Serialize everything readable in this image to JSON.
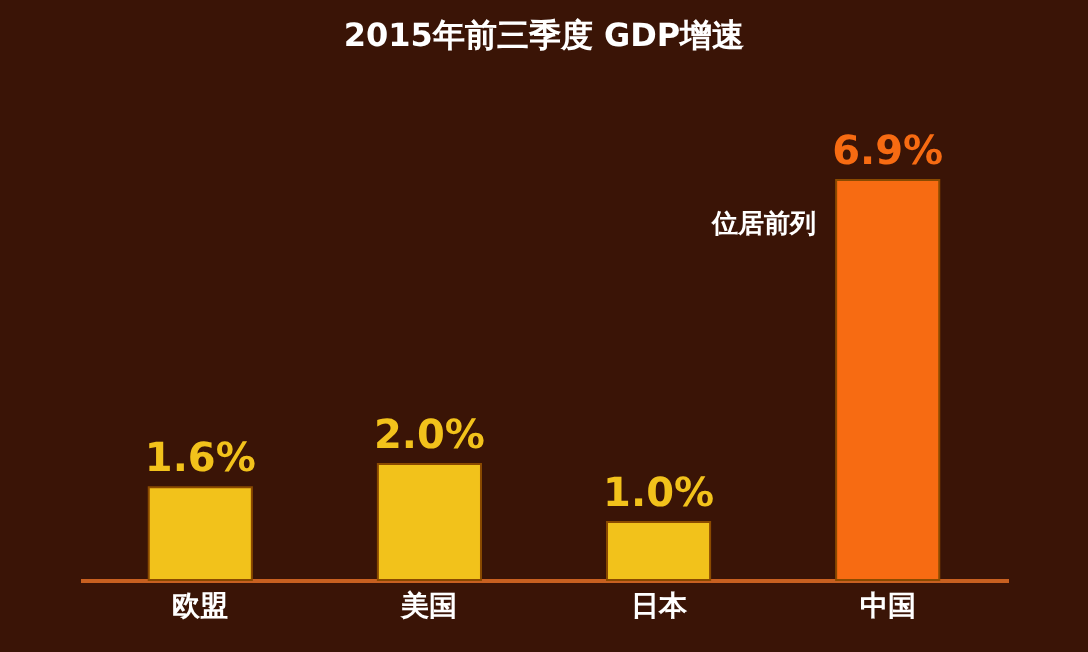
{
  "chart_data": {
    "type": "bar",
    "title": "2015年前三季度 GDP增速",
    "categories": [
      "欧盟",
      "美国",
      "日本",
      "中国"
    ],
    "values": [
      1.6,
      2.0,
      1.0,
      6.9
    ],
    "colors": [
      "#f2c21b",
      "#f2c21b",
      "#f2c21b",
      "#f76b12"
    ],
    "value_labels": [
      "1.6%",
      "2.0%",
      "1.0%",
      "6.9%"
    ],
    "annotations": [
      {
        "text": "位居前列",
        "x": "中国",
        "y": 6.9
      }
    ],
    "grid": false
  }
}
